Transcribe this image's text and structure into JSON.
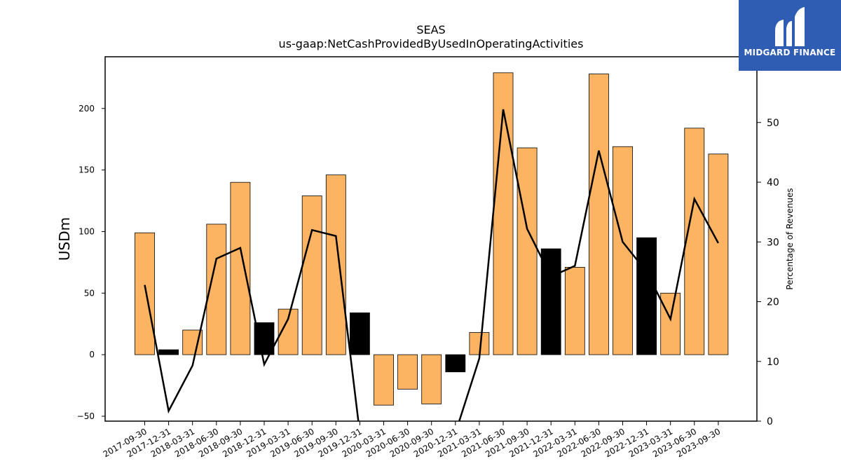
{
  "chart_data": {
    "type": "bar",
    "title": "SEAS",
    "subtitle": "us-gaap:NetCashProvidedByUsedInOperatingActivities",
    "ylabel": "USDm",
    "y2label": "Percentage of Revenues",
    "ylim": [
      -54,
      242
    ],
    "y2lim": [
      0,
      61
    ],
    "yticks": [
      -50,
      0,
      50,
      100,
      150,
      200
    ],
    "y2ticks": [
      0,
      10,
      20,
      30,
      40,
      50
    ],
    "categories": [
      "2017-09-30",
      "2017-12-31",
      "2018-03-31",
      "2018-06-30",
      "2018-09-30",
      "2018-12-31",
      "2019-03-31",
      "2019-06-30",
      "2019-09-30",
      "2019-12-31",
      "2020-03-31",
      "2020-06-30",
      "2020-09-30",
      "2020-12-31",
      "2021-03-31",
      "2021-06-30",
      "2021-09-30",
      "2021-12-31",
      "2022-03-31",
      "2022-06-30",
      "2022-09-30",
      "2022-12-31",
      "2023-03-31",
      "2023-06-30",
      "2023-09-30"
    ],
    "series": [
      {
        "kind": "bar",
        "values": [
          99,
          4,
          20,
          106,
          140,
          26,
          37,
          129,
          146,
          34,
          -41,
          -28,
          -40,
          -14,
          18,
          229,
          168,
          86,
          71,
          228,
          169,
          95,
          50,
          184,
          163
        ],
        "colors": [
          "#fdb462",
          "#000000",
          "#fdb462",
          "#fdb462",
          "#fdb462",
          "#000000",
          "#fdb462",
          "#fdb462",
          "#fdb462",
          "#000000",
          "#fdb462",
          "#fdb462",
          "#fdb462",
          "#000000",
          "#fdb462",
          "#fdb462",
          "#fdb462",
          "#000000",
          "#fdb462",
          "#fdb462",
          "#fdb462",
          "#000000",
          "#fdb462",
          "#fdb462",
          "#fdb462"
        ]
      },
      {
        "kind": "line",
        "axis": "right",
        "color": "#000000",
        "values": [
          22.8,
          1.7,
          9.3,
          27.2,
          29.0,
          9.5,
          17.1,
          32.0,
          31.0,
          -2.0,
          null,
          null,
          null,
          -2.0,
          10.5,
          52.2,
          32.2,
          24.2,
          26.0,
          45.3,
          30.0,
          25.0,
          17.1,
          37.2,
          29.8
        ]
      }
    ],
    "grid": false,
    "legend": "none"
  },
  "logo": {
    "text": "MIDGARD FINANCE"
  },
  "colors": {
    "bar_default": "#fdb462",
    "bar_q4": "#000000",
    "logo_bg": "#2f5db4"
  }
}
